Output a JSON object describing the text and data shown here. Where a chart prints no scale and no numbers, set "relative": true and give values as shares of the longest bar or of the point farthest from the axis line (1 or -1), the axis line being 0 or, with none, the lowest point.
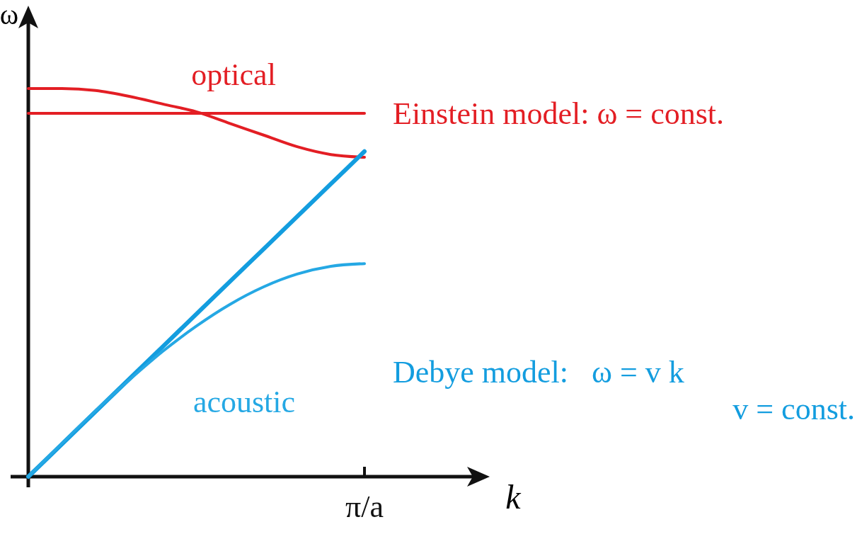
{
  "chart_data": {
    "type": "line",
    "relative": true,
    "xlabel": "k",
    "ylabel": "ω",
    "marker": "none",
    "line_style": "solid",
    "categories": [
      null,
      null,
      null,
      null,
      null,
      null,
      null,
      null,
      null,
      null,
      null
    ],
    "series": [
      {
        "name": "optical",
        "color": "#e31e24",
        "values": [
          1,
          1,
          0.995,
          0.98,
          0.96,
          0.94,
          0.91,
          0.88,
          0.85,
          0.83,
          0.823
        ]
      },
      {
        "name": "Einstein model: ω = const.",
        "color": "#e31e24",
        "values": [
          0.936,
          0.936,
          0.936,
          0.936,
          0.936,
          0.936,
          0.936,
          0.936,
          0.936,
          0.936,
          0.936
        ]
      },
      {
        "name": "Debye model:   ω = v k",
        "color": "#139ddf",
        "values": [
          0,
          0.0838,
          0.1676,
          0.2514,
          0.3352,
          0.419,
          0.5028,
          0.5866,
          0.6704,
          0.7542,
          0.838
        ]
      },
      {
        "name": "acoustic",
        "color": "#25a8e4",
        "values": [
          0,
          0.086,
          0.17,
          0.249,
          0.323,
          0.388,
          0.444,
          0.489,
          0.522,
          0.542,
          0.549
        ]
      }
    ],
    "annotations": [
      "π/a",
      "v = const."
    ]
  }
}
